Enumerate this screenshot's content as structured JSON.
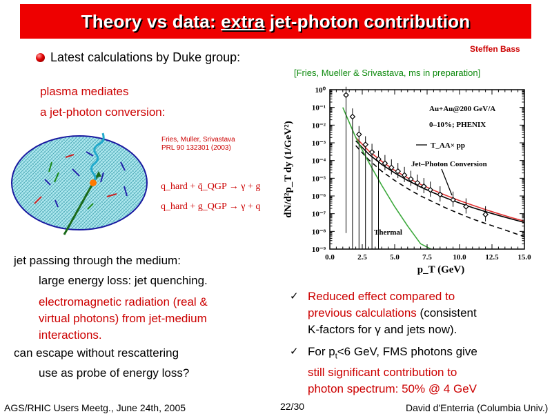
{
  "title": {
    "before": "Theory vs data: ",
    "emph": "extra",
    "after": " jet-photon contribution"
  },
  "author_tag": "Steffen Bass",
  "intro": "Latest calculations by Duke group:",
  "citation_top": "[Fries, Mueller & Srivastava, ms in preparation]",
  "plasma_line1": "plasma mediates",
  "plasma_line2": "a jet-photon conversion:",
  "ref_line1": "Fries, Muller, Srivastava",
  "ref_line2": "PRL 90 132301 (2003)",
  "reaction1": "q_hard + q̄_QGP → γ + g",
  "reaction2": "q_hard + g_QGP → γ + q",
  "left_text": {
    "l1": "jet passing through the medium:",
    "l2": "large energy loss: jet quenching.",
    "l3a": "electromagnetic radiation (real &",
    "l3b": "virtual photons) from jet-medium",
    "l3c": "interactions.",
    "l4": "can escape without rescattering",
    "l5": "use as probe of energy loss?"
  },
  "right_bullets": {
    "b1_red_a": "Reduced effect compared to",
    "b1_red_b": "previous calculations",
    "b1_black_b": " (consistent",
    "b1_c": "K-factors for γ and jets now).",
    "b2_a": "For p",
    "b2_sub": "t",
    "b2_a2": "<6 GeV, FMS photons give",
    "b2_red_b": "still significant contribution to",
    "b2_red_c": "photon spectrum: 50% @ 4 GeV"
  },
  "footer": {
    "left": "AGS/RHIC Users Meetg., June 24th, 2005",
    "center": "22/30",
    "right": "David d'Enterria (Columbia Univ.)"
  },
  "chart_data": {
    "type": "scatter",
    "title": "",
    "xlabel": "p_T (GeV)",
    "ylabel": "dN/d²p_T dy (1/GeV²)",
    "log_y": true,
    "xlim": [
      0.0,
      15.0
    ],
    "ylim": [
      1e-09,
      1
    ],
    "x_ticks": [
      "0.0",
      "2.5",
      "5.0",
      "7.5",
      "10.0",
      "12.5",
      "15.0"
    ],
    "y_ticks": [
      "10⁰",
      "10⁻¹",
      "10⁻²",
      "10⁻³",
      "10⁻⁴",
      "10⁻⁵",
      "10⁻⁶",
      "10⁻⁷",
      "10⁻⁸",
      "10⁻⁹"
    ],
    "annotations": [
      "Au+Au@200 GeV/A",
      "0–10%; PHENIX",
      "T_AA× pp",
      "Jet–Photon Conversion",
      "Thermal"
    ],
    "data_points": [
      {
        "x": 1.25,
        "y": 0.5
      },
      {
        "x": 1.75,
        "y": 0.03
      },
      {
        "x": 2.25,
        "y": 0.003
      },
      {
        "x": 2.75,
        "y": 0.0008
      },
      {
        "x": 3.25,
        "y": 0.0003
      },
      {
        "x": 3.75,
        "y": 0.00012
      },
      {
        "x": 4.25,
        "y": 7e-05
      },
      {
        "x": 4.75,
        "y": 4e-05
      },
      {
        "x": 5.25,
        "y": 2.5e-05
      },
      {
        "x": 5.75,
        "y": 1.5e-05
      },
      {
        "x": 6.25,
        "y": 9e-06
      },
      {
        "x": 6.75,
        "y": 5.5e-06
      },
      {
        "x": 7.25,
        "y": 3.5e-06
      },
      {
        "x": 7.75,
        "y": 2.2e-06
      },
      {
        "x": 8.5,
        "y": 1.2e-06
      },
      {
        "x": 9.5,
        "y": 6e-07
      },
      {
        "x": 10.5,
        "y": 2.5e-07
      },
      {
        "x": 12.0,
        "y": 9e-08
      }
    ],
    "series": [
      {
        "name": "Jet–Photon Conversion",
        "color": "#e03030",
        "x": [
          2.0,
          3.0,
          4.0,
          5.0,
          6.0,
          7.0,
          8.0,
          9.0,
          10.0,
          11.0,
          12.0,
          13.0,
          14.0,
          15.0
        ],
        "y": [
          0.002,
          0.00035,
          9e-05,
          2.8e-05,
          1.05e-05,
          4.5e-06,
          2.1e-06,
          1.05e-06,
          5.5e-07,
          3e-07,
          1.7e-07,
          1e-07,
          6e-08,
          3.8e-08
        ]
      },
      {
        "name": "T_AA× pp",
        "color": "#000000",
        "x": [
          2.0,
          3.0,
          4.0,
          5.0,
          6.0,
          7.0,
          8.0,
          9.0,
          10.0,
          11.0,
          12.0,
          13.0,
          14.0,
          15.0
        ],
        "y": [
          0.0013,
          0.00023,
          6e-05,
          2e-05,
          7.5e-06,
          3.2e-06,
          1.5e-06,
          7.5e-07,
          4e-07,
          2.2e-07,
          1.3e-07,
          8e-08,
          5e-08,
          3.2e-08
        ]
      },
      {
        "name": "",
        "color": "#000000",
        "dash": true,
        "x": [
          2.0,
          3.0,
          4.0,
          5.0,
          6.0,
          7.0,
          8.0,
          9.0,
          10.0,
          11.0,
          12.0,
          13.0,
          14.0,
          15.0
        ],
        "y": [
          0.0007,
          0.00011,
          2.5e-05,
          7.5e-06,
          2.6e-06,
          1e-06,
          4.5e-07,
          2e-07,
          1e-07,
          5e-08,
          2.8e-08,
          1.6e-08,
          9e-09,
          5e-09
        ]
      },
      {
        "name": "Thermal",
        "color": "#3aa83a",
        "x": [
          1.0,
          2.0,
          3.0,
          4.0,
          5.0,
          6.0,
          7.0,
          7.8
        ],
        "y": [
          0.1,
          0.002,
          8e-05,
          4e-06,
          2.5e-07,
          2e-08,
          2e-09,
          1e-09
        ]
      }
    ]
  }
}
